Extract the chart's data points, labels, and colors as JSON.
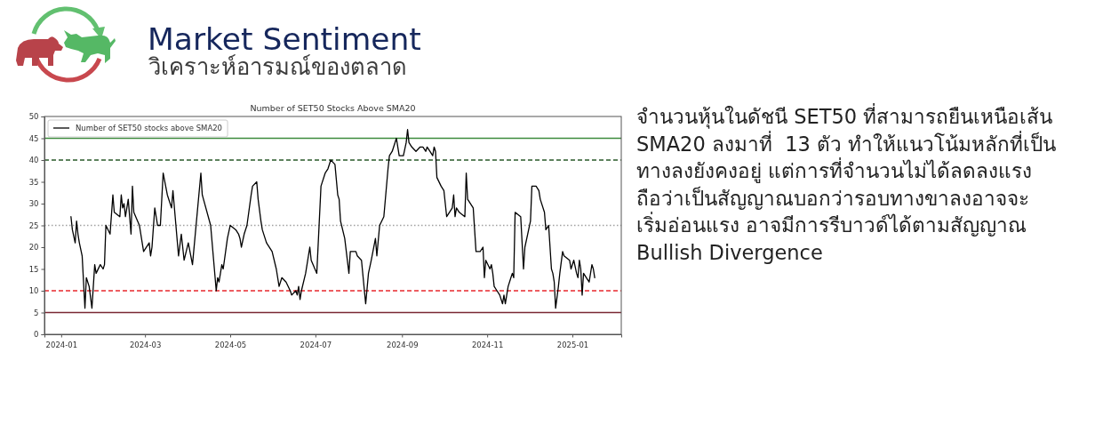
{
  "chart_data": {
    "type": "line",
    "title": "Number of SET50 Stocks Above SMA20",
    "annotations": [
      "Market Sentiment",
      "วิเคราะห์อารมณ์ของตลาด",
      "จำนวนหุ้นในดัชนี SET50 ที่สามารถยืนเหนือเส้น\nSMA20 ลงมาที่  13 ตัว ทำให้แนวโน้มหลักที่เป็น\nทางลงยังคงอยู่ แต่การที่จำนวนไม่ได้ลดลงแรง\nถือว่าเป็นสัญญาณบอกว่ารอบทางขาลงอาจจะ\nเริ่มอ่อนแรง อาจมีการรีบาวด์ได้ตามสัญญาณ\nBullish Divergence"
    ],
    "x": [
      "2024-01-08",
      "2024-01-09",
      "2024-01-11",
      "2024-01-12",
      "2024-01-13",
      "2024-01-14",
      "2024-01-16",
      "2024-01-18",
      "2024-01-19",
      "2024-01-21",
      "2024-01-23",
      "2024-01-25",
      "2024-01-26",
      "2024-01-29",
      "2024-01-31",
      "2024-02-01",
      "2024-02-02",
      "2024-02-05",
      "2024-02-07",
      "2024-02-08",
      "2024-02-12",
      "2024-02-13",
      "2024-02-14",
      "2024-02-15",
      "2024-02-16",
      "2024-02-18",
      "2024-02-20",
      "2024-02-21",
      "2024-02-22",
      "2024-02-26",
      "2024-02-29",
      "2024-03-04",
      "2024-03-05",
      "2024-03-06",
      "2024-03-08",
      "2024-03-10",
      "2024-03-12",
      "2024-03-14",
      "2024-03-17",
      "2024-03-20",
      "2024-03-21",
      "2024-03-25",
      "2024-03-27",
      "2024-03-29",
      "2024-04-01",
      "2024-04-04",
      "2024-04-10",
      "2024-04-11",
      "2024-04-17",
      "2024-04-21",
      "2024-04-22",
      "2024-04-23",
      "2024-04-25",
      "2024-04-26",
      "2024-04-29",
      "2024-05-01",
      "2024-05-05",
      "2024-05-07",
      "2024-05-08",
      "2024-05-09",
      "2024-05-11",
      "2024-05-13",
      "2024-05-16",
      "2024-05-17",
      "2024-05-20",
      "2024-05-21",
      "2024-05-23",
      "2024-05-24",
      "2024-05-27",
      "2024-05-31",
      "2024-06-03",
      "2024-06-05",
      "2024-06-07",
      "2024-06-10",
      "2024-06-13",
      "2024-06-14",
      "2024-06-17",
      "2024-06-18",
      "2024-06-19",
      "2024-06-20",
      "2024-06-21",
      "2024-06-24",
      "2024-06-27",
      "2024-06-28",
      "2024-07-02",
      "2024-07-05",
      "2024-07-08",
      "2024-07-10",
      "2024-07-12",
      "2024-07-15",
      "2024-07-17",
      "2024-07-18",
      "2024-07-19",
      "2024-07-22",
      "2024-07-25",
      "2024-07-26",
      "2024-07-30",
      "2024-07-31",
      "2024-08-03",
      "2024-08-06",
      "2024-08-08",
      "2024-08-10",
      "2024-08-13",
      "2024-08-14",
      "2024-08-16",
      "2024-08-19",
      "2024-08-22",
      "2024-08-23",
      "2024-08-25",
      "2024-08-28",
      "2024-08-30",
      "2024-09-02",
      "2024-09-04",
      "2024-09-05",
      "2024-09-06",
      "2024-09-08",
      "2024-09-11",
      "2024-09-14",
      "2024-09-16",
      "2024-09-18",
      "2024-09-19",
      "2024-09-21",
      "2024-09-23",
      "2024-09-24",
      "2024-09-25",
      "2024-09-26",
      "2024-09-29",
      "2024-10-01",
      "2024-10-03",
      "2024-10-07",
      "2024-10-08",
      "2024-10-09",
      "2024-10-10",
      "2024-10-12",
      "2024-10-16",
      "2024-10-17",
      "2024-10-18",
      "2024-10-22",
      "2024-10-24",
      "2024-10-27",
      "2024-10-29",
      "2024-10-30",
      "2024-10-31",
      "2024-11-03",
      "2024-11-04",
      "2024-11-05",
      "2024-11-06",
      "2024-11-08",
      "2024-11-10",
      "2024-11-12",
      "2024-11-13",
      "2024-11-14",
      "2024-11-16",
      "2024-11-18",
      "2024-11-19",
      "2024-11-20",
      "2024-11-21",
      "2024-11-25",
      "2024-11-27",
      "2024-11-28",
      "2024-11-30",
      "2024-12-02",
      "2024-12-03",
      "2024-12-06",
      "2024-12-08",
      "2024-12-09",
      "2024-12-12",
      "2024-12-13",
      "2024-12-15",
      "2024-12-17",
      "2024-12-18",
      "2024-12-19",
      "2024-12-20",
      "2024-12-22",
      "2024-12-23",
      "2024-12-25",
      "2024-12-26",
      "2024-12-30",
      "2024-12-31",
      "2025-01-02",
      "2025-01-04",
      "2025-01-05",
      "2025-01-06",
      "2025-01-07",
      "2025-01-08",
      "2025-01-09",
      "2025-01-11",
      "2025-01-13",
      "2025-01-15",
      "2025-01-16",
      "2025-01-17"
    ],
    "series": [
      {
        "name": "Number of SET50 stocks above SMA20",
        "color": "#000000",
        "values": [
          27,
          24,
          21,
          26,
          23,
          21,
          18,
          6,
          13,
          11,
          6,
          16,
          14,
          16,
          15,
          16,
          25,
          23,
          32,
          28,
          27,
          32,
          29,
          30,
          27,
          31,
          23,
          34,
          28,
          25,
          19,
          21,
          18,
          20,
          29,
          25,
          25,
          37,
          32,
          29,
          33,
          18,
          23,
          17,
          21,
          16,
          37,
          32,
          25,
          10,
          13,
          12,
          16,
          15,
          22,
          25,
          24,
          23,
          22,
          20,
          23,
          25,
          32,
          34,
          35,
          31,
          26,
          24,
          21,
          19,
          15,
          11,
          13,
          12,
          10,
          9,
          10,
          9,
          11,
          8,
          10,
          14,
          20,
          17,
          14,
          34,
          37,
          38,
          40,
          39,
          32,
          31,
          26,
          22,
          14,
          19,
          19,
          18,
          17,
          7,
          14,
          17,
          22,
          18,
          25,
          27,
          38,
          41,
          42,
          45,
          41,
          41,
          44,
          47,
          44,
          43,
          42,
          43,
          43,
          42,
          43,
          42,
          41,
          43,
          42,
          36,
          34,
          33,
          27,
          29,
          32,
          27,
          29,
          28,
          27,
          37,
          31,
          29,
          19,
          19,
          20,
          13,
          17,
          15,
          16,
          14,
          11,
          10,
          9,
          7,
          9,
          7,
          11,
          13,
          14,
          13,
          28,
          27,
          15,
          20,
          23,
          26,
          34,
          34,
          33,
          31,
          28,
          24,
          25,
          15,
          14,
          12,
          6,
          11,
          14,
          19,
          18,
          17,
          15,
          17,
          14,
          13,
          17,
          15,
          9,
          14,
          13,
          12,
          16,
          15,
          13
        ]
      }
    ],
    "xlim": [
      "2023-12-20",
      "2025-02-05"
    ],
    "xticks": [
      "2024-01",
      "2024-03",
      "2024-05",
      "2024-07",
      "2024-09",
      "2024-11",
      "2025-01"
    ],
    "ylim": [
      0,
      50
    ],
    "yticks": [
      0,
      5,
      10,
      15,
      20,
      25,
      30,
      35,
      40,
      45,
      50
    ],
    "ref_lines": [
      {
        "axis": "y",
        "value": 45,
        "color": "#3c8a3c",
        "line_style": "solid"
      },
      {
        "axis": "y",
        "value": 40,
        "color": "#2a5a2a",
        "line_style": "dashed"
      },
      {
        "axis": "y",
        "value": 25,
        "color": "#a0a0a0",
        "line_style": "dotted"
      },
      {
        "axis": "y",
        "value": 10,
        "color": "#e8282e",
        "line_style": "dashed"
      },
      {
        "axis": "y",
        "value": 5,
        "color": "#7a2834",
        "line_style": "solid"
      }
    ],
    "legend": "top left"
  }
}
